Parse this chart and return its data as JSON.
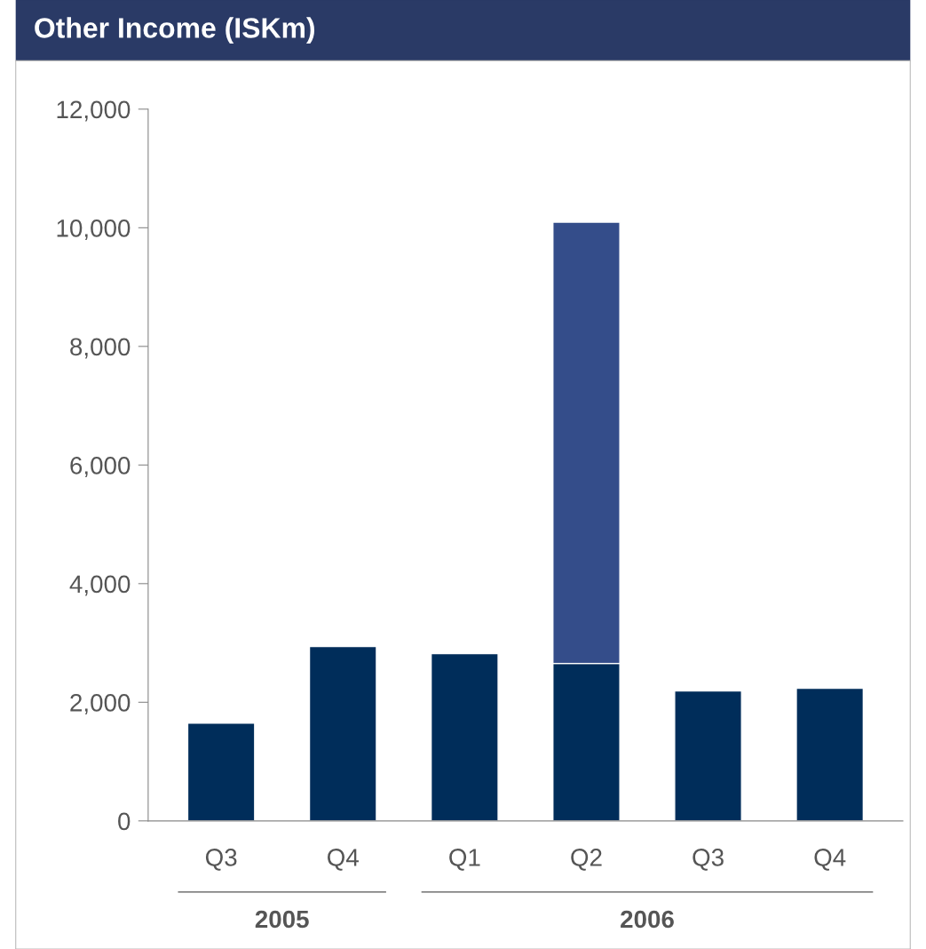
{
  "chart_data": {
    "type": "bar",
    "title": "Other Income (ISKm)",
    "stacked": true,
    "categories": [
      "Q3",
      "Q4",
      "Q1",
      "Q2",
      "Q3",
      "Q4"
    ],
    "series": [
      {
        "color": "#002d5a",
        "values": [
          1650,
          2940,
          2820,
          2655,
          2190,
          2235
        ]
      },
      {
        "color": "#344d8a",
        "values": [
          null,
          null,
          null,
          7440,
          null,
          null
        ]
      }
    ],
    "ylim": [
      0,
      12000
    ],
    "yticks": [
      {
        "value": 0,
        "label": "0"
      },
      {
        "value": 2000,
        "label": "2,000"
      },
      {
        "value": 4000,
        "label": "4,000"
      },
      {
        "value": 6000,
        "label": "6,000"
      },
      {
        "value": 8000,
        "label": "8,000"
      },
      {
        "value": 10000,
        "label": "10,000"
      },
      {
        "value": 12000,
        "label": "12,000"
      }
    ],
    "annotations": [
      "2005",
      "2006"
    ],
    "grid": false,
    "legend": false
  }
}
